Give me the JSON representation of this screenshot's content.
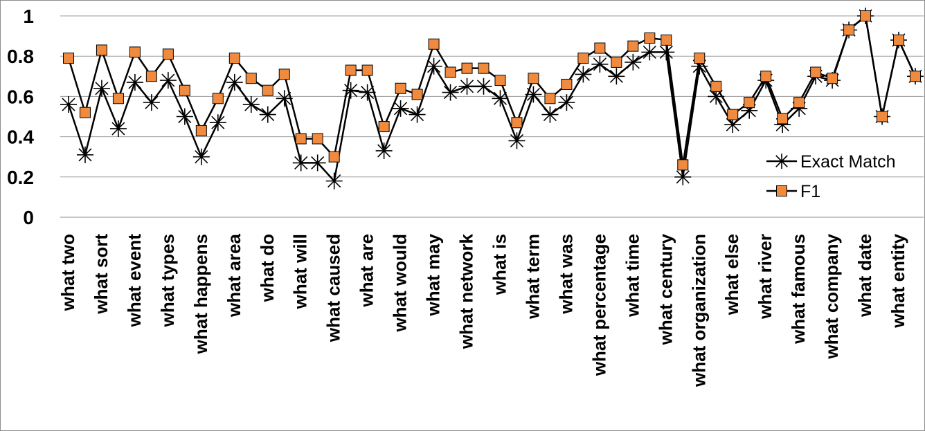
{
  "chart_data": {
    "type": "line",
    "categories": [
      "what two",
      "",
      "what sort",
      "",
      "what event",
      "",
      "what types",
      "",
      "what happens",
      "",
      "what area",
      "",
      "what do",
      "",
      "what will",
      "",
      "what caused",
      "",
      "what are",
      "",
      "what would",
      "",
      "what may",
      "",
      "what network",
      "",
      "what is",
      "",
      "what term",
      "",
      "what was",
      "",
      "what percentage",
      "",
      "what time",
      "",
      "what century",
      "",
      "what organization",
      "",
      "what else",
      "",
      "what river",
      "",
      "what famous",
      "",
      "what company",
      "",
      "what date",
      "",
      "what entity",
      ""
    ],
    "series": [
      {
        "name": "Exact Match",
        "color": "#000000",
        "marker": "asterisk",
        "values": [
          0.56,
          0.31,
          0.64,
          0.44,
          0.67,
          0.57,
          0.68,
          0.5,
          0.3,
          0.47,
          0.67,
          0.56,
          0.51,
          0.59,
          0.27,
          0.27,
          0.18,
          0.63,
          0.62,
          0.33,
          0.54,
          0.51,
          0.75,
          0.62,
          0.65,
          0.65,
          0.59,
          0.38,
          0.61,
          0.51,
          0.57,
          0.71,
          0.76,
          0.7,
          0.77,
          0.82,
          0.82,
          0.2,
          0.75,
          0.6,
          0.46,
          0.53,
          0.68,
          0.46,
          0.54,
          0.7,
          0.68,
          0.93,
          1.0,
          0.5,
          0.88,
          0.7
        ]
      },
      {
        "name": "F1",
        "color": "#f08a3e",
        "marker": "square",
        "values": [
          0.79,
          0.52,
          0.83,
          0.59,
          0.82,
          0.7,
          0.81,
          0.63,
          0.43,
          0.59,
          0.79,
          0.69,
          0.63,
          0.71,
          0.39,
          0.39,
          0.3,
          0.73,
          0.73,
          0.45,
          0.64,
          0.61,
          0.86,
          0.72,
          0.74,
          0.74,
          0.68,
          0.47,
          0.69,
          0.59,
          0.66,
          0.79,
          0.84,
          0.77,
          0.85,
          0.89,
          0.88,
          0.26,
          0.79,
          0.65,
          0.51,
          0.57,
          0.7,
          0.49,
          0.57,
          0.72,
          0.69,
          0.93,
          1.0,
          0.5,
          0.88,
          0.7
        ]
      }
    ],
    "ylim": [
      0,
      1
    ],
    "yticks": [
      "0",
      "0.2",
      "0.4",
      "0.6",
      "0.8",
      "1"
    ],
    "grid": true,
    "legend_position": "right"
  }
}
